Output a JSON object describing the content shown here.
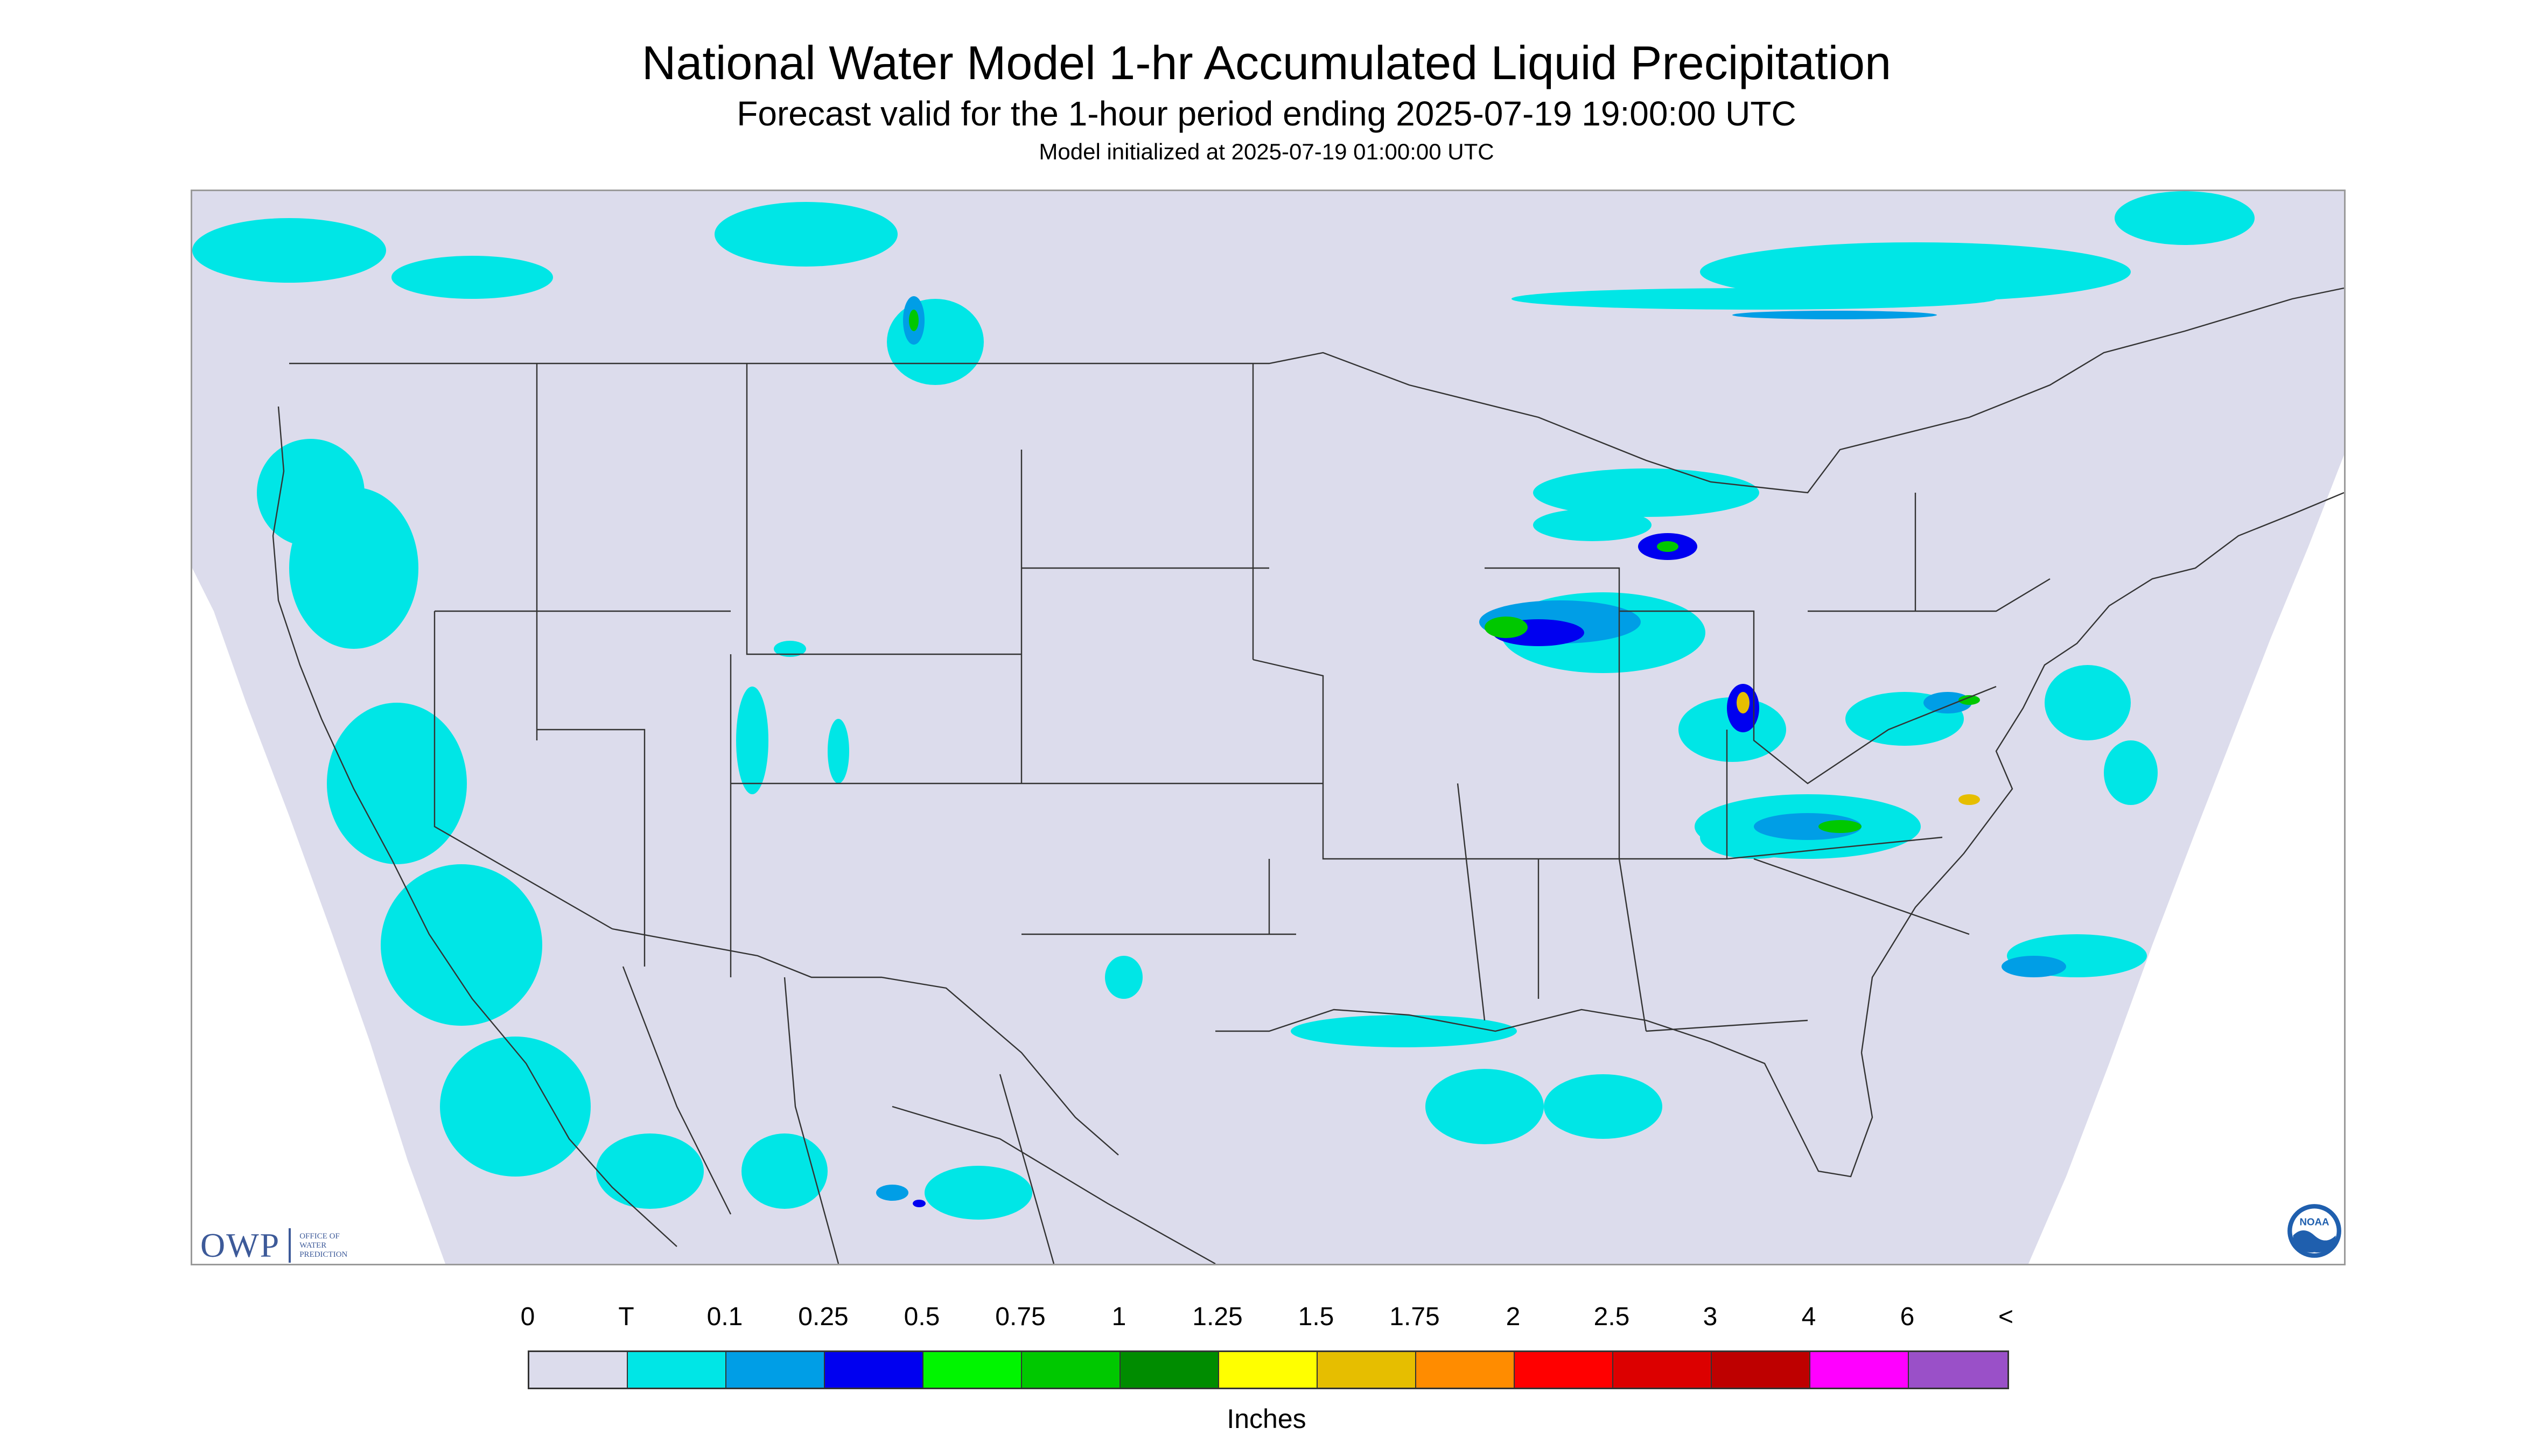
{
  "title": "National Water Model 1-hr Accumulated Liquid Precipitation",
  "subtitle": "Forecast valid for the 1-hour period ending 2025-07-19 19:00:00 UTC",
  "init_line": "Model initialized at 2025-07-19 01:00:00 UTC",
  "logos": {
    "owp_mark": "OWP",
    "owp_text": [
      "OFFICE OF",
      "WATER",
      "PREDICTION"
    ],
    "noaa": "NOAA"
  },
  "colorbar": {
    "labels": [
      "0",
      "T",
      "0.1",
      "0.25",
      "0.5",
      "0.75",
      "1",
      "1.25",
      "1.5",
      "1.75",
      "2",
      "2.5",
      "3",
      "4",
      "6",
      "<"
    ],
    "colors": [
      "#dcdcec",
      "#00e6e6",
      "#009ee6",
      "#0000f0",
      "#00f500",
      "#00c800",
      "#008c00",
      "#ffff00",
      "#e6be00",
      "#ff8c00",
      "#ff0000",
      "#dc0000",
      "#be0000",
      "#ff00ff",
      "#9a50c8"
    ],
    "units": "Inches"
  },
  "map_colors": {
    "outside": "#ffffff",
    "domain": "#dcdcec",
    "trace": "#00e6e6",
    "light": "#009ee6",
    "moderate": "#0000f0",
    "heavy": "#00c800",
    "intense": "#e6be00",
    "borders": "#333333"
  }
}
